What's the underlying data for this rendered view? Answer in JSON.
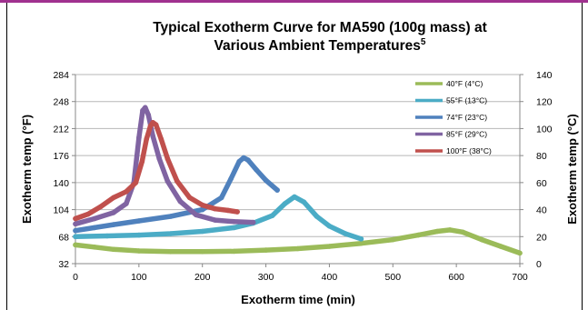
{
  "colors": {
    "top_rule": "#a0318f",
    "grid": "#b7b7b7",
    "s40": "#9bbb59",
    "s55": "#4bacc6",
    "s74": "#4f81bd",
    "s85": "#8064a2",
    "s100": "#c0504d"
  },
  "chart_data": {
    "type": "scatter",
    "title_line1": "Typical Exotherm Curve for MA590 (100g mass) at",
    "title_line2": "Various Ambient Temperatures",
    "title_superscript": "5",
    "xlabel": "Exotherm time (min)",
    "ylabel_left": "Exotherm temp (°F)",
    "ylabel_right": "Exotherm temp (°C)",
    "xlim": [
      0,
      700
    ],
    "ylim_left": [
      32,
      284
    ],
    "ylim_right": [
      0,
      140
    ],
    "x_ticks": [
      "0",
      "100",
      "200",
      "300",
      "400",
      "500",
      "600",
      "700"
    ],
    "y_ticks_left": [
      "32",
      "68",
      "104",
      "140",
      "176",
      "212",
      "248",
      "284"
    ],
    "y_ticks_right": [
      "0",
      "20",
      "40",
      "60",
      "80",
      "100",
      "120",
      "140"
    ],
    "grid": true,
    "legend_position": "top-right",
    "series": [
      {
        "name": "40°F (4°C)",
        "color_key": "s40",
        "x": [
          0,
          30,
          60,
          100,
          150,
          200,
          250,
          300,
          350,
          400,
          450,
          500,
          540,
          570,
          590,
          610,
          640,
          670,
          700
        ],
        "y": [
          57,
          54,
          51,
          49,
          48,
          48,
          48.5,
          50,
          52,
          55,
          59,
          64,
          70,
          75,
          77,
          74,
          64,
          55,
          46
        ]
      },
      {
        "name": "55°F (13°C)",
        "color_key": "s55",
        "x": [
          0,
          50,
          100,
          150,
          200,
          250,
          280,
          310,
          330,
          345,
          360,
          380,
          400,
          425,
          450
        ],
        "y": [
          68,
          69,
          70,
          72,
          75,
          80,
          86,
          96,
          112,
          121,
          114,
          95,
          82,
          72,
          65
        ]
      },
      {
        "name": "74°F (23°C)",
        "color_key": "s74",
        "x": [
          0,
          30,
          60,
          100,
          150,
          200,
          230,
          245,
          258,
          265,
          272,
          285,
          300,
          318
        ],
        "y": [
          76,
          80,
          84,
          89,
          95,
          104,
          120,
          145,
          168,
          173,
          170,
          157,
          143,
          130
        ]
      },
      {
        "name": "85°F (29°C)",
        "color_key": "s85",
        "x": [
          0,
          30,
          60,
          80,
          92,
          100,
          106,
          110,
          115,
          122,
          132,
          145,
          165,
          190,
          220,
          250,
          280
        ],
        "y": [
          85,
          92,
          100,
          112,
          140,
          200,
          236,
          240,
          230,
          202,
          172,
          142,
          115,
          97,
          90,
          88,
          87
        ]
      },
      {
        "name": "100°F (38°C)",
        "color_key": "s100",
        "x": [
          0,
          20,
          40,
          60,
          80,
          95,
          105,
          112,
          118,
          122,
          127,
          135,
          145,
          160,
          180,
          200,
          220,
          240,
          255
        ],
        "y": [
          92,
          98,
          108,
          120,
          128,
          140,
          168,
          198,
          215,
          220,
          217,
          198,
          172,
          142,
          120,
          110,
          105,
          103,
          101
        ]
      }
    ]
  }
}
